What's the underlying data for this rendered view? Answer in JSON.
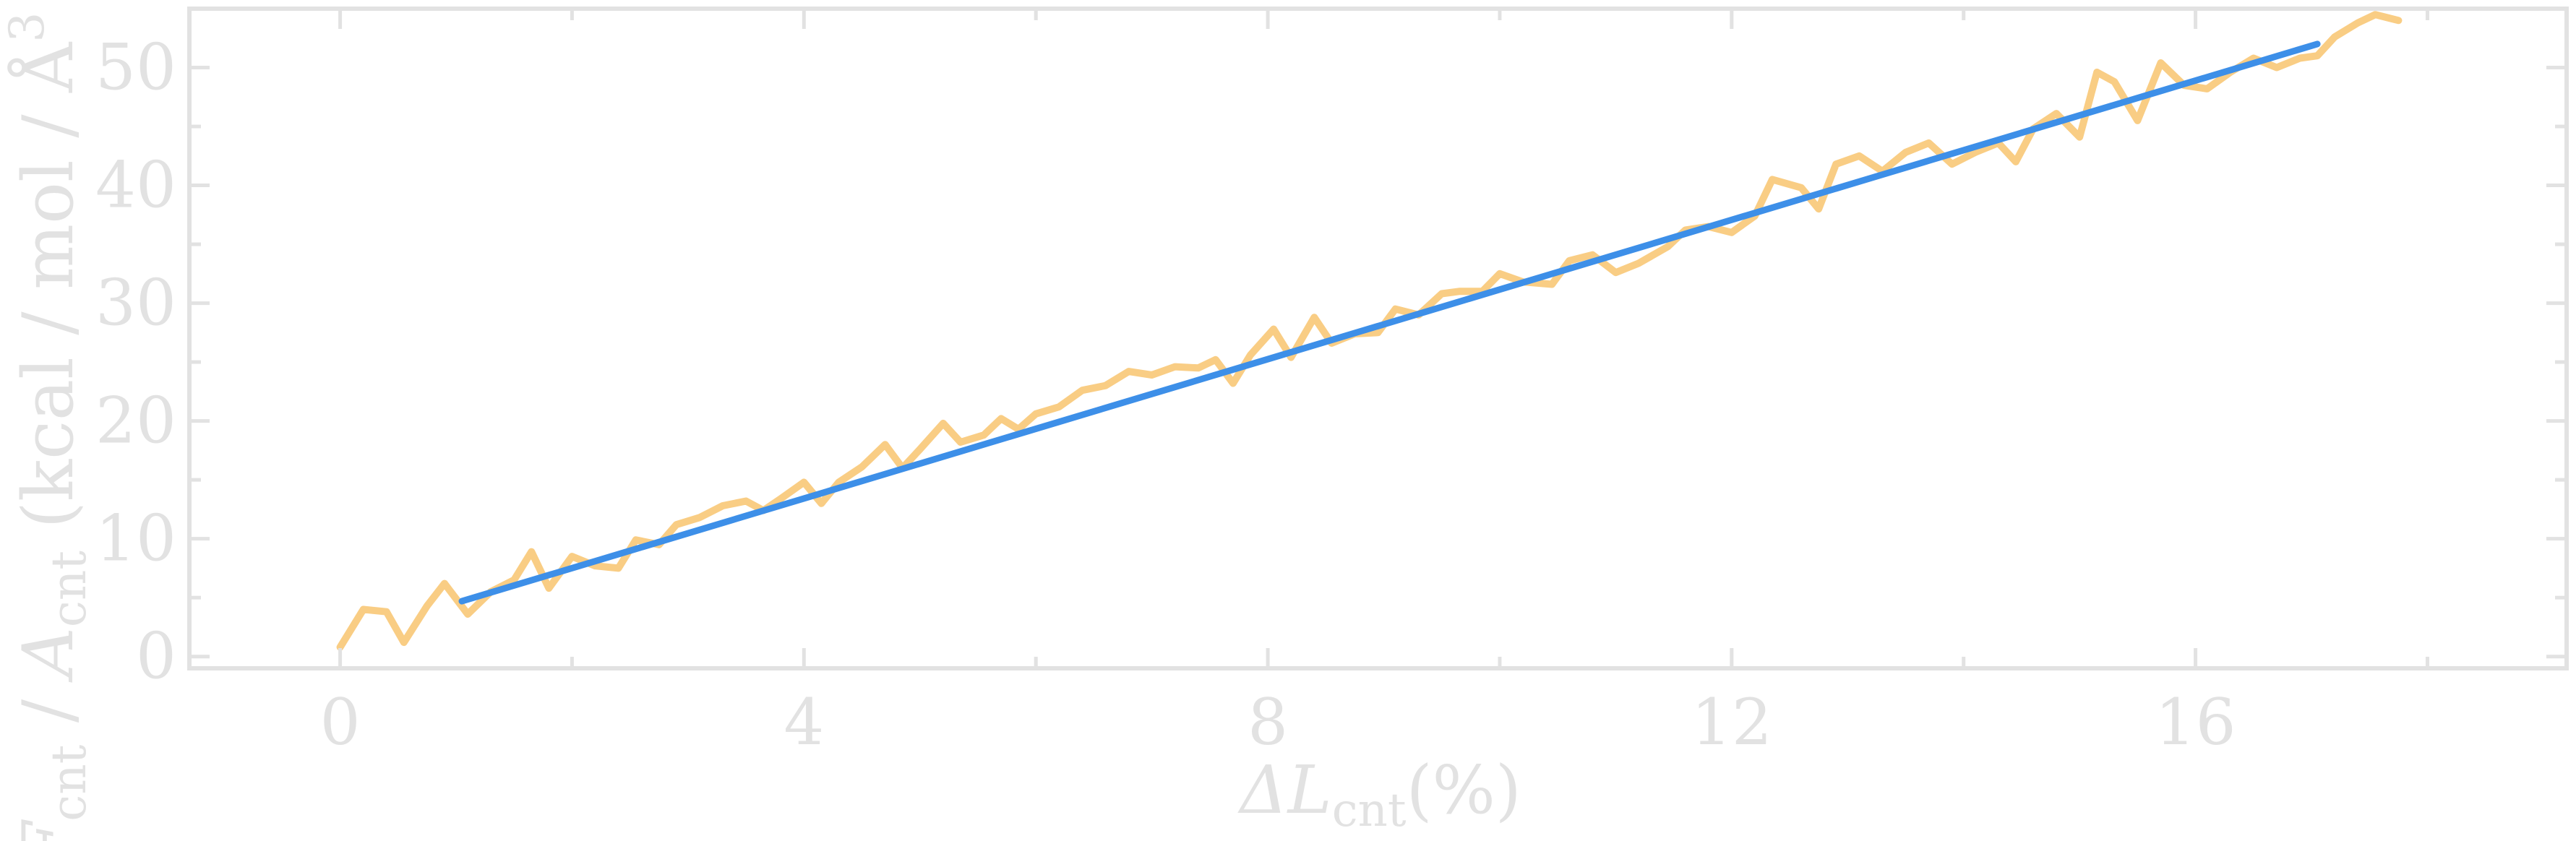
{
  "chart_data": {
    "type": "line",
    "title": "",
    "xlabel": {
      "main": "ΔL",
      "sub": "cnt",
      "unit": "(%)"
    },
    "ylabel": {
      "f": "F",
      "f_sub": "cnt",
      "mid": " / ",
      "a": "A",
      "a_sub": "cnt",
      "unit": " (kcal / mol / Å",
      "sup": "3"
    },
    "xlim": [
      -1.3,
      19.2
    ],
    "ylim": [
      -1,
      55
    ],
    "x_ticks": [
      0,
      4,
      8,
      12,
      16
    ],
    "y_ticks": [
      0,
      10,
      20,
      30,
      40,
      50
    ],
    "x_minor_ticks": [
      2,
      6,
      10,
      14,
      18
    ],
    "y_minor_ticks": [
      5,
      15,
      25,
      35,
      45
    ],
    "grid": false,
    "colors": {
      "data": "#f9cd84",
      "fit": "#3d8fe8",
      "axis": "#e2e2e2"
    },
    "series": [
      {
        "role": "data",
        "x": [
          0.0,
          0.2,
          0.4,
          0.55,
          0.75,
          0.9,
          1.1,
          1.3,
          1.5,
          1.65,
          1.8,
          2.0,
          2.2,
          2.4,
          2.55,
          2.75,
          2.9,
          3.1,
          3.3,
          3.5,
          3.65,
          3.8,
          4.0,
          4.15,
          4.3,
          4.5,
          4.7,
          4.85,
          5.0,
          5.2,
          5.35,
          5.55,
          5.7,
          5.85,
          6.0,
          6.2,
          6.4,
          6.6,
          6.8,
          7.0,
          7.2,
          7.4,
          7.55,
          7.7,
          7.85,
          8.05,
          8.2,
          8.4,
          8.55,
          8.75,
          8.95,
          9.1,
          9.3,
          9.5,
          9.65,
          9.85,
          10.0,
          10.2,
          10.45,
          10.6,
          10.8,
          11.0,
          11.2,
          11.45,
          11.6,
          11.8,
          12.0,
          12.2,
          12.35,
          12.6,
          12.75,
          12.9,
          13.1,
          13.3,
          13.5,
          13.7,
          13.9,
          14.1,
          14.3,
          14.45,
          14.6,
          14.8,
          15.0,
          15.15,
          15.3,
          15.5,
          15.7,
          15.9,
          16.1,
          16.3,
          16.5,
          16.7,
          16.9,
          17.05,
          17.2,
          17.4,
          17.55,
          17.75
        ],
        "y": [
          0.8,
          4.0,
          3.8,
          1.2,
          4.3,
          6.2,
          3.6,
          5.5,
          6.5,
          8.9,
          5.8,
          8.5,
          7.7,
          7.5,
          9.9,
          9.5,
          11.2,
          11.8,
          12.8,
          13.2,
          12.4,
          13.4,
          14.8,
          13.0,
          14.8,
          16.1,
          18.0,
          16.0,
          17.6,
          19.8,
          18.2,
          18.8,
          20.2,
          19.3,
          20.6,
          21.2,
          22.6,
          23.0,
          24.2,
          23.9,
          24.6,
          24.5,
          25.2,
          23.2,
          25.6,
          27.8,
          25.4,
          28.8,
          26.6,
          27.4,
          27.5,
          29.5,
          29.0,
          30.8,
          31.0,
          31.0,
          32.5,
          31.8,
          31.6,
          33.6,
          34.1,
          32.6,
          33.4,
          34.8,
          36.2,
          36.5,
          36.0,
          37.4,
          40.5,
          39.8,
          38.0,
          41.8,
          42.5,
          41.2,
          42.8,
          43.6,
          41.8,
          42.8,
          43.6,
          42.0,
          44.8,
          46.1,
          44.1,
          49.6,
          48.8,
          45.5,
          50.4,
          48.5,
          48.2,
          49.6,
          50.8,
          50.0,
          50.8,
          51.0,
          52.6,
          53.8,
          54.5,
          54.0
        ]
      },
      {
        "role": "fit",
        "x": [
          1.05,
          17.05
        ],
        "y": [
          4.7,
          52.0
        ]
      }
    ]
  }
}
